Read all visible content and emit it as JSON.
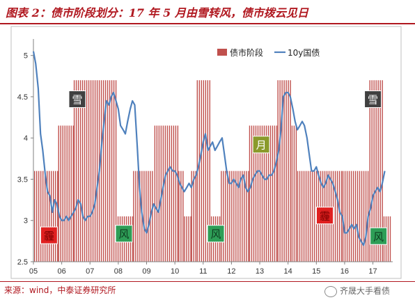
{
  "title": "图表 2：债市阶段划分：17 年 5 月由雪转风，债市拨云见日",
  "source": "来源：wind，中泰证券研究所",
  "watermark": "齐晟大手看债",
  "colors": {
    "bar": "#c0504d",
    "line": "#4f81bd",
    "title": "#b0171f"
  },
  "chart_data": {
    "type": "bar",
    "ylim": [
      2.5,
      5.2
    ],
    "yticks": [
      2.5,
      3,
      3.5,
      4,
      4.5,
      5
    ],
    "xlim": [
      2005,
      2017.7
    ],
    "xticks": [
      {
        "x": 2005,
        "label": "05"
      },
      {
        "x": 2006,
        "label": "06"
      },
      {
        "x": 2007,
        "label": "07"
      },
      {
        "x": 2008,
        "label": "08"
      },
      {
        "x": 2009,
        "label": "09"
      },
      {
        "x": 2010,
        "label": "10"
      },
      {
        "x": 2011,
        "label": "11"
      },
      {
        "x": 2012,
        "label": "12"
      },
      {
        "x": 2013,
        "label": "13"
      },
      {
        "x": 2014,
        "label": "14"
      },
      {
        "x": 2015,
        "label": "15"
      },
      {
        "x": 2016,
        "label": "16"
      },
      {
        "x": 2017,
        "label": "17"
      }
    ],
    "legend": {
      "position": "top-center",
      "bar_label": "债市阶段",
      "line_label": "10y国债"
    },
    "stages": [
      {
        "start": 2005.0,
        "end": 2005.85,
        "value": 3.6
      },
      {
        "start": 2005.85,
        "end": 2006.4,
        "value": 4.15
      },
      {
        "start": 2006.4,
        "end": 2007.95,
        "value": 4.7
      },
      {
        "start": 2007.95,
        "end": 2008.5,
        "value": 3.05
      },
      {
        "start": 2008.5,
        "end": 2009.25,
        "value": 3.6
      },
      {
        "start": 2009.25,
        "end": 2010.1,
        "value": 4.15
      },
      {
        "start": 2010.1,
        "end": 2010.3,
        "value": 3.6
      },
      {
        "start": 2010.3,
        "end": 2010.55,
        "value": 3.05
      },
      {
        "start": 2010.55,
        "end": 2010.75,
        "value": 3.6
      },
      {
        "start": 2010.75,
        "end": 2011.25,
        "value": 4.7
      },
      {
        "start": 2011.25,
        "end": 2011.6,
        "value": 3.05
      },
      {
        "start": 2011.6,
        "end": 2012.6,
        "value": 3.6
      },
      {
        "start": 2012.6,
        "end": 2013.6,
        "value": 4.15
      },
      {
        "start": 2013.6,
        "end": 2014.1,
        "value": 4.7
      },
      {
        "start": 2014.1,
        "end": 2014.3,
        "value": 4.15
      },
      {
        "start": 2014.3,
        "end": 2015.9,
        "value": 3.6
      },
      {
        "start": 2015.9,
        "end": 2016.85,
        "value": 3.6
      },
      {
        "start": 2016.85,
        "end": 2017.35,
        "value": 4.7
      },
      {
        "start": 2017.35,
        "end": 2017.6,
        "value": 3.05
      }
    ],
    "series": [
      {
        "name": "10y国债",
        "points": [
          [
            2005.0,
            5.05
          ],
          [
            2005.08,
            4.9
          ],
          [
            2005.17,
            4.6
          ],
          [
            2005.25,
            4.05
          ],
          [
            2005.33,
            3.85
          ],
          [
            2005.42,
            3.55
          ],
          [
            2005.5,
            3.35
          ],
          [
            2005.58,
            3.3
          ],
          [
            2005.67,
            3.1
          ],
          [
            2005.75,
            3.25
          ],
          [
            2005.83,
            3.2
          ],
          [
            2005.92,
            3.05
          ],
          [
            2006.0,
            3.0
          ],
          [
            2006.08,
            3.0
          ],
          [
            2006.17,
            3.05
          ],
          [
            2006.25,
            3.0
          ],
          [
            2006.33,
            3.05
          ],
          [
            2006.42,
            3.1
          ],
          [
            2006.5,
            3.15
          ],
          [
            2006.58,
            3.25
          ],
          [
            2006.67,
            3.2
          ],
          [
            2006.75,
            3.05
          ],
          [
            2006.83,
            3.0
          ],
          [
            2006.92,
            3.05
          ],
          [
            2007.0,
            3.05
          ],
          [
            2007.08,
            3.1
          ],
          [
            2007.17,
            3.2
          ],
          [
            2007.25,
            3.4
          ],
          [
            2007.33,
            3.6
          ],
          [
            2007.42,
            3.95
          ],
          [
            2007.5,
            4.2
          ],
          [
            2007.58,
            4.45
          ],
          [
            2007.67,
            4.4
          ],
          [
            2007.75,
            4.5
          ],
          [
            2007.83,
            4.55
          ],
          [
            2007.92,
            4.45
          ],
          [
            2008.0,
            4.35
          ],
          [
            2008.08,
            4.15
          ],
          [
            2008.17,
            4.1
          ],
          [
            2008.25,
            4.05
          ],
          [
            2008.33,
            4.2
          ],
          [
            2008.42,
            4.35
          ],
          [
            2008.5,
            4.45
          ],
          [
            2008.58,
            4.4
          ],
          [
            2008.67,
            3.9
          ],
          [
            2008.75,
            3.4
          ],
          [
            2008.83,
            3.1
          ],
          [
            2008.92,
            2.9
          ],
          [
            2009.0,
            2.85
          ],
          [
            2009.08,
            2.95
          ],
          [
            2009.17,
            3.1
          ],
          [
            2009.25,
            3.2
          ],
          [
            2009.33,
            3.15
          ],
          [
            2009.42,
            3.1
          ],
          [
            2009.5,
            3.25
          ],
          [
            2009.58,
            3.4
          ],
          [
            2009.67,
            3.55
          ],
          [
            2009.75,
            3.6
          ],
          [
            2009.83,
            3.65
          ],
          [
            2009.92,
            3.6
          ],
          [
            2010.0,
            3.6
          ],
          [
            2010.08,
            3.55
          ],
          [
            2010.17,
            3.45
          ],
          [
            2010.25,
            3.4
          ],
          [
            2010.33,
            3.35
          ],
          [
            2010.42,
            3.4
          ],
          [
            2010.5,
            3.45
          ],
          [
            2010.58,
            3.4
          ],
          [
            2010.67,
            3.5
          ],
          [
            2010.75,
            3.55
          ],
          [
            2010.83,
            3.65
          ],
          [
            2010.92,
            3.8
          ],
          [
            2011.0,
            3.95
          ],
          [
            2011.08,
            4.05
          ],
          [
            2011.17,
            3.85
          ],
          [
            2011.25,
            3.9
          ],
          [
            2011.33,
            3.95
          ],
          [
            2011.42,
            3.85
          ],
          [
            2011.5,
            3.9
          ],
          [
            2011.58,
            3.95
          ],
          [
            2011.67,
            4.0
          ],
          [
            2011.75,
            3.8
          ],
          [
            2011.83,
            3.6
          ],
          [
            2011.92,
            3.45
          ],
          [
            2012.0,
            3.45
          ],
          [
            2012.08,
            3.5
          ],
          [
            2012.17,
            3.45
          ],
          [
            2012.25,
            3.4
          ],
          [
            2012.33,
            3.5
          ],
          [
            2012.42,
            3.55
          ],
          [
            2012.5,
            3.4
          ],
          [
            2012.58,
            3.35
          ],
          [
            2012.67,
            3.4
          ],
          [
            2012.75,
            3.5
          ],
          [
            2012.83,
            3.55
          ],
          [
            2012.92,
            3.6
          ],
          [
            2013.0,
            3.6
          ],
          [
            2013.08,
            3.55
          ],
          [
            2013.17,
            3.5
          ],
          [
            2013.25,
            3.5
          ],
          [
            2013.33,
            3.55
          ],
          [
            2013.42,
            3.55
          ],
          [
            2013.5,
            3.6
          ],
          [
            2013.58,
            3.7
          ],
          [
            2013.67,
            3.85
          ],
          [
            2013.75,
            4.1
          ],
          [
            2013.83,
            4.5
          ],
          [
            2013.92,
            4.55
          ],
          [
            2014.0,
            4.55
          ],
          [
            2014.08,
            4.5
          ],
          [
            2014.17,
            4.35
          ],
          [
            2014.25,
            4.2
          ],
          [
            2014.33,
            4.1
          ],
          [
            2014.42,
            4.15
          ],
          [
            2014.5,
            4.2
          ],
          [
            2014.58,
            4.15
          ],
          [
            2014.67,
            4.0
          ],
          [
            2014.75,
            3.8
          ],
          [
            2014.83,
            3.6
          ],
          [
            2014.92,
            3.6
          ],
          [
            2015.0,
            3.65
          ],
          [
            2015.08,
            3.55
          ],
          [
            2015.17,
            3.45
          ],
          [
            2015.25,
            3.4
          ],
          [
            2015.33,
            3.45
          ],
          [
            2015.42,
            3.55
          ],
          [
            2015.5,
            3.5
          ],
          [
            2015.58,
            3.45
          ],
          [
            2015.67,
            3.35
          ],
          [
            2015.75,
            3.25
          ],
          [
            2015.83,
            3.1
          ],
          [
            2015.92,
            3.05
          ],
          [
            2016.0,
            2.85
          ],
          [
            2016.08,
            2.85
          ],
          [
            2016.17,
            2.9
          ],
          [
            2016.25,
            2.95
          ],
          [
            2016.33,
            2.9
          ],
          [
            2016.42,
            2.95
          ],
          [
            2016.5,
            2.8
          ],
          [
            2016.58,
            2.75
          ],
          [
            2016.67,
            2.7
          ],
          [
            2016.75,
            2.8
          ],
          [
            2016.83,
            3.05
          ],
          [
            2016.92,
            3.15
          ],
          [
            2017.0,
            3.3
          ],
          [
            2017.08,
            3.35
          ],
          [
            2017.17,
            3.4
          ],
          [
            2017.25,
            3.35
          ],
          [
            2017.33,
            3.45
          ],
          [
            2017.42,
            3.6
          ]
        ]
      }
    ],
    "annotations": [
      {
        "text": "雪",
        "x": 2006.55,
        "y": 4.47,
        "bg": "#404040",
        "fg": "#ffffff"
      },
      {
        "text": "雪",
        "x": 2017.0,
        "y": 4.47,
        "bg": "#404040",
        "fg": "#ffffff"
      },
      {
        "text": "月",
        "x": 2013.05,
        "y": 3.92,
        "bg": "#8a9a2b",
        "fg": "#ffffff"
      },
      {
        "text": "霾",
        "x": 2005.55,
        "y": 2.82,
        "bg": "#e02020",
        "fg": "#7a0000"
      },
      {
        "text": "风",
        "x": 2008.2,
        "y": 2.84,
        "bg": "#2e9e57",
        "fg": "#0d3b1f"
      },
      {
        "text": "风",
        "x": 2011.45,
        "y": 2.84,
        "bg": "#2e9e57",
        "fg": "#0d3b1f"
      },
      {
        "text": "霾",
        "x": 2015.3,
        "y": 3.06,
        "bg": "#e02020",
        "fg": "#7a0000"
      },
      {
        "text": "风",
        "x": 2017.2,
        "y": 2.81,
        "bg": "#2e9e57",
        "fg": "#0d3b1f"
      }
    ]
  }
}
